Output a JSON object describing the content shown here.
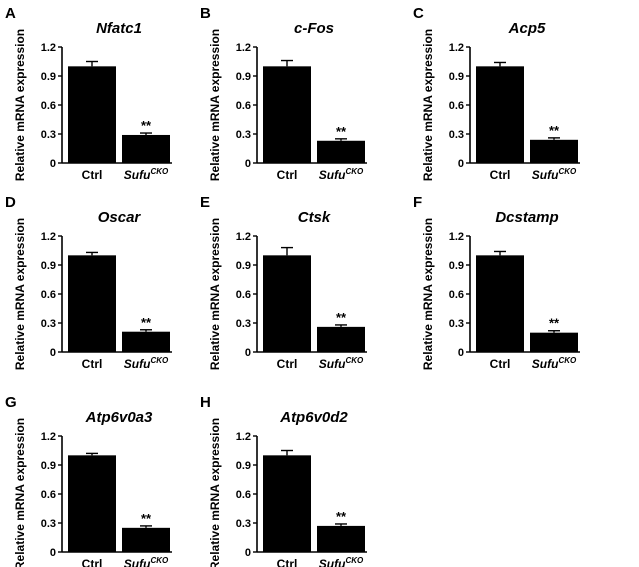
{
  "figure": {
    "ylabel": "Relative mRNA expression",
    "yticks": [
      "0",
      "0.3",
      "0.6",
      "0.9",
      "1.2"
    ],
    "significance": "**",
    "ctrl_label": "Ctrl",
    "cko_base": "Sufu",
    "cko_sup": "CKO"
  },
  "chart_data": [
    {
      "type": "bar",
      "panel": "A",
      "title": "Nfatc1",
      "categories": [
        "Ctrl",
        "SufuCKO"
      ],
      "values": [
        1.0,
        0.29
      ],
      "errors": [
        0.05,
        0.02
      ],
      "ylabel": "Relative mRNA expression",
      "ylim": [
        0,
        1.2
      ],
      "annotations": [
        "",
        "**"
      ]
    },
    {
      "type": "bar",
      "panel": "B",
      "title": "c-Fos",
      "categories": [
        "Ctrl",
        "SufuCKO"
      ],
      "values": [
        1.0,
        0.23
      ],
      "errors": [
        0.06,
        0.02
      ],
      "ylabel": "Relative mRNA expression",
      "ylim": [
        0,
        1.2
      ],
      "annotations": [
        "",
        "**"
      ]
    },
    {
      "type": "bar",
      "panel": "C",
      "title": "Acp5",
      "categories": [
        "Ctrl",
        "SufuCKO"
      ],
      "values": [
        1.0,
        0.24
      ],
      "errors": [
        0.04,
        0.02
      ],
      "ylabel": "Relative mRNA expression",
      "ylim": [
        0,
        1.2
      ],
      "annotations": [
        "",
        "**"
      ]
    },
    {
      "type": "bar",
      "panel": "D",
      "title": "Oscar",
      "categories": [
        "Ctrl",
        "SufuCKO"
      ],
      "values": [
        1.0,
        0.21
      ],
      "errors": [
        0.03,
        0.02
      ],
      "ylabel": "Relative mRNA expression",
      "ylim": [
        0,
        1.2
      ],
      "annotations": [
        "",
        "**"
      ]
    },
    {
      "type": "bar",
      "panel": "E",
      "title": "Ctsk",
      "categories": [
        "Ctrl",
        "SufuCKO"
      ],
      "values": [
        1.0,
        0.26
      ],
      "errors": [
        0.08,
        0.02
      ],
      "ylabel": "Relative mRNA expression",
      "ylim": [
        0,
        1.2
      ],
      "annotations": [
        "",
        "**"
      ]
    },
    {
      "type": "bar",
      "panel": "F",
      "title": "Dcstamp",
      "categories": [
        "Ctrl",
        "SufuCKO"
      ],
      "values": [
        1.0,
        0.2
      ],
      "errors": [
        0.04,
        0.02
      ],
      "ylabel": "Relative mRNA expression",
      "ylim": [
        0,
        1.2
      ],
      "annotations": [
        "",
        "**"
      ]
    },
    {
      "type": "bar",
      "panel": "G",
      "title": "Atp6v0a3",
      "categories": [
        "Ctrl",
        "SufuCKO"
      ],
      "values": [
        1.0,
        0.25
      ],
      "errors": [
        0.02,
        0.02
      ],
      "ylabel": "Relative mRNA expression",
      "ylim": [
        0,
        1.2
      ],
      "annotations": [
        "",
        "**"
      ]
    },
    {
      "type": "bar",
      "panel": "H",
      "title": "Atp6v0d2",
      "categories": [
        "Ctrl",
        "SufuCKO"
      ],
      "values": [
        1.0,
        0.27
      ],
      "errors": [
        0.05,
        0.02
      ],
      "ylabel": "Relative mRNA expression",
      "ylim": [
        0,
        1.2
      ],
      "annotations": [
        "",
        "**"
      ]
    }
  ]
}
